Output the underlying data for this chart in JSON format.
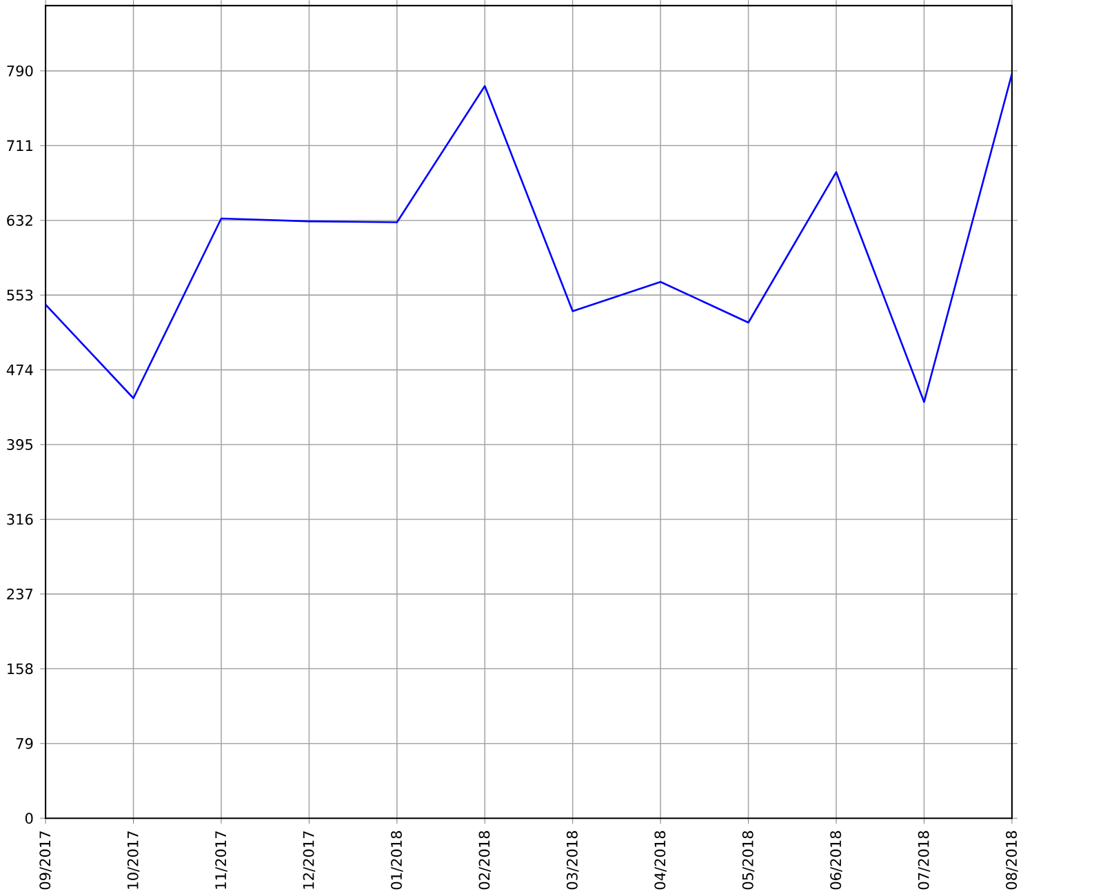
{
  "chart_data": {
    "type": "line",
    "categories": [
      "09/2017",
      "10/2017",
      "11/2017",
      "12/2017",
      "01/2018",
      "02/2018",
      "03/2018",
      "04/2018",
      "05/2018",
      "06/2018",
      "07/2018",
      "08/2018"
    ],
    "series": [
      {
        "color": "#0000ff",
        "values": [
          543,
          444,
          634,
          631,
          630,
          774,
          536,
          567,
          524,
          683,
          440,
          787
        ]
      }
    ],
    "ylim": [
      0,
      859
    ],
    "yticks": [
      0,
      79,
      158,
      237,
      316,
      395,
      474,
      553,
      632,
      711,
      790
    ],
    "grid": true,
    "marker": "none",
    "line_style": "solid"
  }
}
